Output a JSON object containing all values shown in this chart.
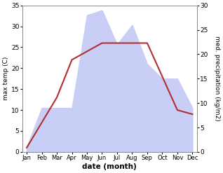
{
  "months": [
    "Jan",
    "Feb",
    "Mar",
    "Apr",
    "May",
    "Jun",
    "Jul",
    "Aug",
    "Sep",
    "Oct",
    "Nov",
    "Dec"
  ],
  "month_positions": [
    0,
    1,
    2,
    3,
    4,
    5,
    6,
    7,
    8,
    9,
    10,
    11
  ],
  "temperature": [
    1.0,
    7.0,
    13.0,
    22.0,
    24.0,
    26.0,
    26.0,
    26.0,
    26.0,
    18.0,
    10.0,
    9.0
  ],
  "precipitation": [
    1.0,
    9.0,
    9.0,
    9.0,
    28.0,
    29.0,
    22.0,
    26.0,
    18.0,
    15.0,
    15.0,
    9.0
  ],
  "temp_color": "#b03030",
  "precip_fill_color": "#c8cef5",
  "temp_ylim": [
    0,
    35
  ],
  "precip_ylim": [
    0,
    30
  ],
  "temp_yticks": [
    0,
    5,
    10,
    15,
    20,
    25,
    30,
    35
  ],
  "precip_yticks": [
    0,
    5,
    10,
    15,
    20,
    25,
    30
  ],
  "xlabel": "date (month)",
  "ylabel_left": "max temp (C)",
  "ylabel_right": "med. precipitation (kg/m2)",
  "background_color": "#ffffff",
  "line_width": 1.5
}
